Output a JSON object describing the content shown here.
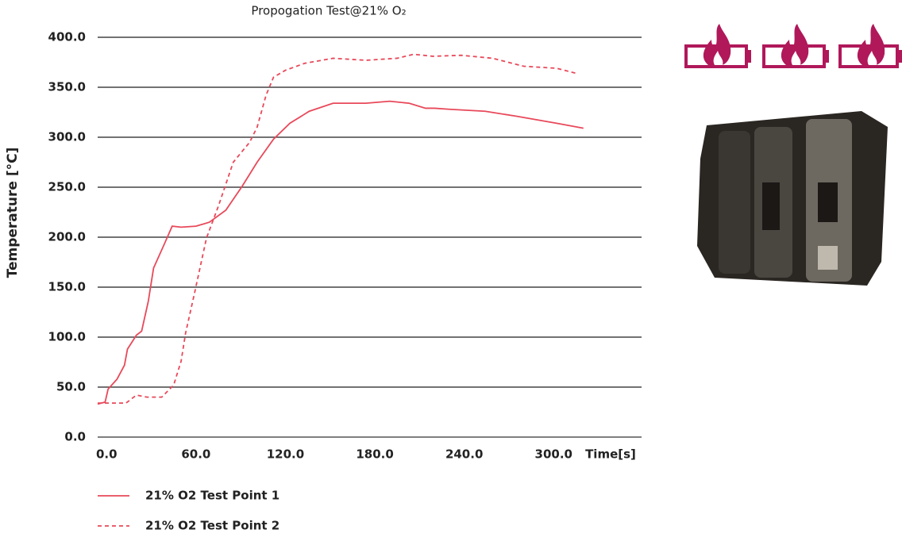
{
  "chart_data": {
    "type": "line",
    "title": "Propogation Test@21% O₂",
    "y_label": "Temperature [°C]",
    "x_label": "Time[s]",
    "xlim": [
      -6,
      359
    ],
    "ylim": [
      0,
      400
    ],
    "xticks": [
      {
        "value": 0,
        "label": "0.0"
      },
      {
        "value": 60,
        "label": "60.0"
      },
      {
        "value": 120,
        "label": "120.0"
      },
      {
        "value": 180,
        "label": "180.0"
      },
      {
        "value": 240,
        "label": "240.0"
      },
      {
        "value": 300,
        "label": "300.0"
      }
    ],
    "yticks": [
      {
        "value": 0,
        "label": "0.0"
      },
      {
        "value": 50,
        "label": "50.0"
      },
      {
        "value": 100,
        "label": "100.0"
      },
      {
        "value": 150,
        "label": "150.0"
      },
      {
        "value": 200,
        "label": "200.0"
      },
      {
        "value": 250,
        "label": "250.0"
      },
      {
        "value": 300,
        "label": "300.0"
      },
      {
        "value": 350,
        "label": "350.0"
      },
      {
        "value": 400,
        "label": "400.0"
      }
    ],
    "grid": true,
    "series": [
      {
        "name": "21% O2 Test Point 1",
        "color": "#e8495a",
        "linestyle": "solid",
        "x": [
          -6,
          -1,
          1,
          7,
          12,
          14,
          20,
          23.5,
          28,
          31.5,
          39,
          44,
          50,
          60,
          69,
          80,
          91,
          101,
          112,
          123,
          136,
          152,
          174,
          190,
          203,
          214,
          220,
          230,
          254,
          275,
          302,
          320
        ],
        "values": [
          33,
          35,
          48,
          58,
          72,
          88,
          102,
          106,
          136,
          169,
          194,
          211,
          210,
          211,
          215,
          227,
          251,
          275,
          298,
          314,
          326,
          334,
          334,
          336,
          334,
          329,
          329,
          328,
          326,
          321,
          314,
          309
        ]
      },
      {
        "name": "21% O2 Test Point 2",
        "color": "#e8495a",
        "linestyle": "dashed",
        "x": [
          -6,
          13,
          20,
          27,
          37,
          45,
          50,
          53,
          59,
          67,
          75,
          85,
          96,
          101,
          107,
          112,
          120,
          133,
          152,
          174,
          195,
          206,
          219,
          238,
          259,
          280,
          302,
          315
        ],
        "values": [
          34,
          34,
          42,
          40,
          40,
          52,
          76,
          104,
          144,
          199,
          231,
          275,
          295,
          310,
          342,
          360,
          367,
          374,
          379,
          377,
          379,
          383,
          381,
          382,
          379,
          371,
          369,
          364
        ]
      }
    ]
  }
}
